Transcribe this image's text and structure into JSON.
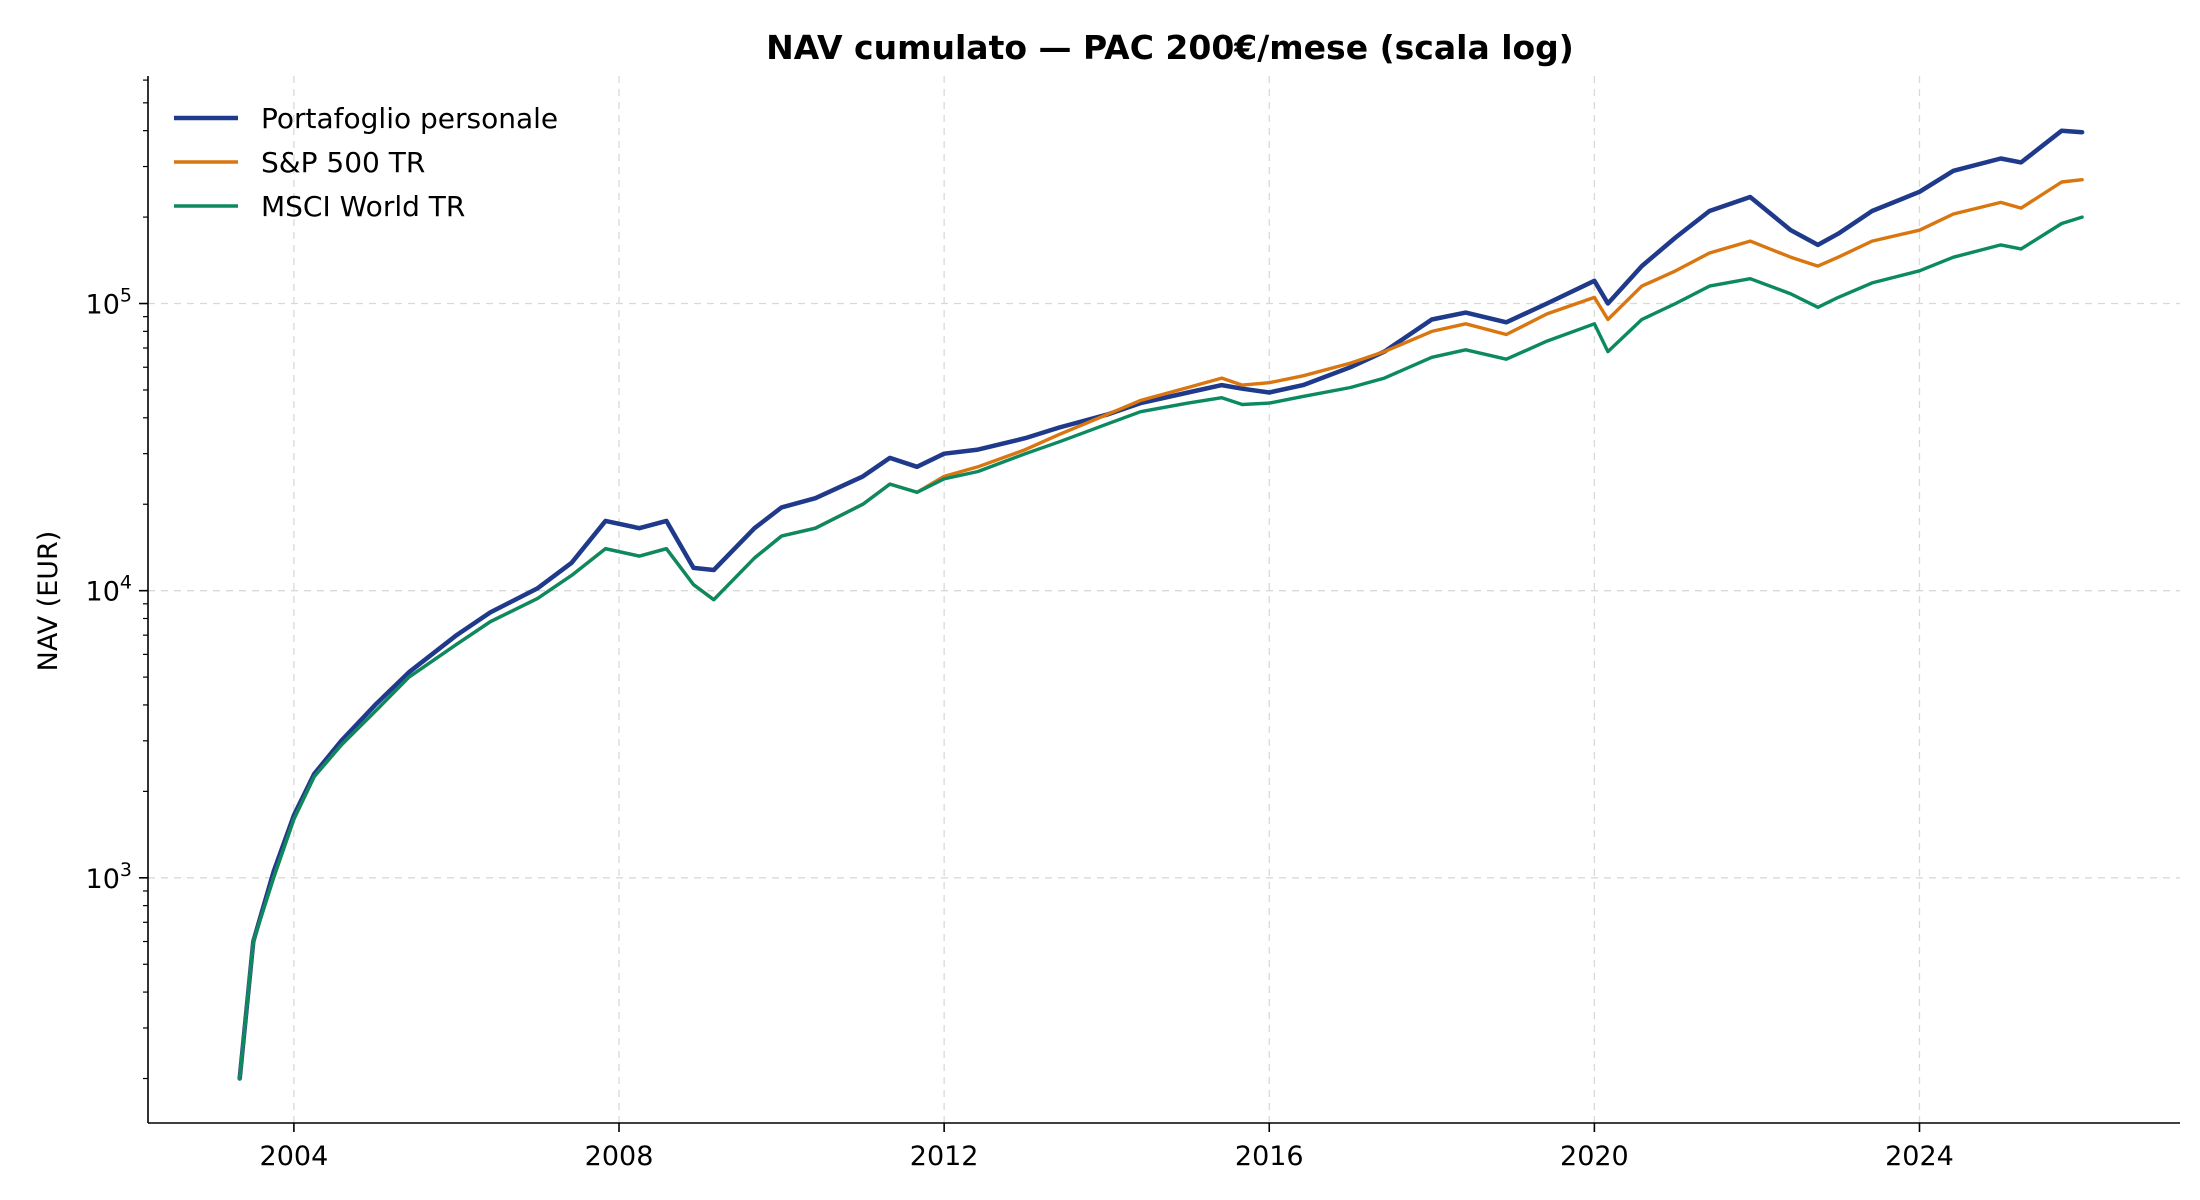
{
  "chart_data": {
    "type": "line",
    "title": "NAV cumulato — PAC 200€/mese (scala log)",
    "xlabel": "",
    "ylabel": "NAV (EUR)",
    "y_scale": "log",
    "x_ticks": [
      "2004",
      "2008",
      "2012",
      "2016",
      "2020",
      "2024"
    ],
    "y_ticks": [
      {
        "value": 1000,
        "base": "10",
        "exp": "3"
      },
      {
        "value": 10000,
        "base": "10",
        "exp": "4"
      },
      {
        "value": 100000,
        "base": "10",
        "exp": "5"
      }
    ],
    "xlim": [
      "2002-03-15",
      "2027-03-15"
    ],
    "ylim": [
      140,
      620000
    ],
    "grid": true,
    "legend_position": "top-left",
    "series": [
      {
        "name": "Portafoglio personale",
        "color": "#1f3a8a",
        "points": [
          [
            "2003-05",
            200
          ],
          [
            "2003-07",
            600
          ],
          [
            "2003-10",
            1050
          ],
          [
            "2004-01",
            1650
          ],
          [
            "2004-04",
            2300
          ],
          [
            "2004-08",
            3000
          ],
          [
            "2005-01",
            4000
          ],
          [
            "2005-06",
            5200
          ],
          [
            "2006-01",
            7000
          ],
          [
            "2006-06",
            8400
          ],
          [
            "2007-01",
            10200
          ],
          [
            "2007-06",
            12500
          ],
          [
            "2007-11",
            17500
          ],
          [
            "2008-04",
            16500
          ],
          [
            "2008-08",
            17500
          ],
          [
            "2008-12",
            12000
          ],
          [
            "2009-03",
            11800
          ],
          [
            "2009-09",
            16500
          ],
          [
            "2010-01",
            19500
          ],
          [
            "2010-06",
            21000
          ],
          [
            "2011-01",
            25000
          ],
          [
            "2011-05",
            29000
          ],
          [
            "2011-09",
            27000
          ],
          [
            "2012-01",
            30000
          ],
          [
            "2012-06",
            31000
          ],
          [
            "2013-01",
            34000
          ],
          [
            "2013-06",
            37000
          ],
          [
            "2014-01",
            41000
          ],
          [
            "2014-06",
            45000
          ],
          [
            "2015-01",
            49000
          ],
          [
            "2015-06",
            52000
          ],
          [
            "2015-09",
            50500
          ],
          [
            "2016-01",
            49000
          ],
          [
            "2016-06",
            52000
          ],
          [
            "2017-01",
            60000
          ],
          [
            "2017-06",
            68000
          ],
          [
            "2018-01",
            88000
          ],
          [
            "2018-06",
            93000
          ],
          [
            "2018-12",
            86000
          ],
          [
            "2019-06",
            100000
          ],
          [
            "2020-01",
            120000
          ],
          [
            "2020-03",
            100000
          ],
          [
            "2020-08",
            135000
          ],
          [
            "2021-01",
            170000
          ],
          [
            "2021-06",
            210000
          ],
          [
            "2021-12",
            235000
          ],
          [
            "2022-06",
            180000
          ],
          [
            "2022-10",
            160000
          ],
          [
            "2023-01",
            175000
          ],
          [
            "2023-06",
            210000
          ],
          [
            "2024-01",
            245000
          ],
          [
            "2024-06",
            290000
          ],
          [
            "2025-01",
            320000
          ],
          [
            "2025-04",
            310000
          ],
          [
            "2025-10",
            400000
          ],
          [
            "2026-01",
            395000
          ]
        ]
      },
      {
        "name": "S&P 500 TR",
        "color": "#d9760f",
        "points": [
          [
            "2003-05",
            200
          ],
          [
            "2003-07",
            600
          ],
          [
            "2003-10",
            1000
          ],
          [
            "2004-01",
            1600
          ],
          [
            "2004-04",
            2250
          ],
          [
            "2004-08",
            2900
          ],
          [
            "2005-01",
            3800
          ],
          [
            "2005-06",
            5000
          ],
          [
            "2006-01",
            6500
          ],
          [
            "2006-06",
            7800
          ],
          [
            "2007-01",
            9400
          ],
          [
            "2007-06",
            11300
          ],
          [
            "2007-11",
            14000
          ],
          [
            "2008-04",
            13200
          ],
          [
            "2008-08",
            14000
          ],
          [
            "2008-12",
            10500
          ],
          [
            "2009-03",
            9300
          ],
          [
            "2009-09",
            13000
          ],
          [
            "2010-01",
            15500
          ],
          [
            "2010-06",
            16500
          ],
          [
            "2011-01",
            20000
          ],
          [
            "2011-05",
            23500
          ],
          [
            "2011-09",
            22000
          ],
          [
            "2012-01",
            25000
          ],
          [
            "2012-06",
            27000
          ],
          [
            "2013-01",
            31000
          ],
          [
            "2013-06",
            35000
          ],
          [
            "2014-01",
            41000
          ],
          [
            "2014-06",
            46000
          ],
          [
            "2015-01",
            51000
          ],
          [
            "2015-06",
            55000
          ],
          [
            "2015-09",
            52000
          ],
          [
            "2016-01",
            53000
          ],
          [
            "2016-06",
            56000
          ],
          [
            "2017-01",
            62000
          ],
          [
            "2017-06",
            68000
          ],
          [
            "2018-01",
            80000
          ],
          [
            "2018-06",
            85000
          ],
          [
            "2018-12",
            78000
          ],
          [
            "2019-06",
            92000
          ],
          [
            "2020-01",
            105000
          ],
          [
            "2020-03",
            88000
          ],
          [
            "2020-08",
            115000
          ],
          [
            "2021-01",
            130000
          ],
          [
            "2021-06",
            150000
          ],
          [
            "2021-12",
            165000
          ],
          [
            "2022-06",
            145000
          ],
          [
            "2022-10",
            135000
          ],
          [
            "2023-01",
            145000
          ],
          [
            "2023-06",
            165000
          ],
          [
            "2024-01",
            180000
          ],
          [
            "2024-06",
            205000
          ],
          [
            "2025-01",
            225000
          ],
          [
            "2025-04",
            215000
          ],
          [
            "2025-10",
            265000
          ],
          [
            "2026-01",
            270000
          ]
        ]
      },
      {
        "name": "MSCI World TR",
        "color": "#0b8a62",
        "points": [
          [
            "2003-05",
            200
          ],
          [
            "2003-07",
            600
          ],
          [
            "2003-10",
            1000
          ],
          [
            "2004-01",
            1600
          ],
          [
            "2004-04",
            2250
          ],
          [
            "2004-08",
            2900
          ],
          [
            "2005-01",
            3800
          ],
          [
            "2005-06",
            5000
          ],
          [
            "2006-01",
            6500
          ],
          [
            "2006-06",
            7800
          ],
          [
            "2007-01",
            9400
          ],
          [
            "2007-06",
            11300
          ],
          [
            "2007-11",
            14000
          ],
          [
            "2008-04",
            13200
          ],
          [
            "2008-08",
            14000
          ],
          [
            "2008-12",
            10500
          ],
          [
            "2009-03",
            9300
          ],
          [
            "2009-09",
            13000
          ],
          [
            "2010-01",
            15500
          ],
          [
            "2010-06",
            16500
          ],
          [
            "2011-01",
            20000
          ],
          [
            "2011-05",
            23500
          ],
          [
            "2011-09",
            22000
          ],
          [
            "2012-01",
            24500
          ],
          [
            "2012-06",
            26000
          ],
          [
            "2013-01",
            30000
          ],
          [
            "2013-06",
            33000
          ],
          [
            "2014-01",
            38000
          ],
          [
            "2014-06",
            42000
          ],
          [
            "2015-01",
            45000
          ],
          [
            "2015-06",
            47000
          ],
          [
            "2015-09",
            44500
          ],
          [
            "2016-01",
            45000
          ],
          [
            "2016-06",
            47500
          ],
          [
            "2017-01",
            51000
          ],
          [
            "2017-06",
            55000
          ],
          [
            "2018-01",
            65000
          ],
          [
            "2018-06",
            69000
          ],
          [
            "2018-12",
            64000
          ],
          [
            "2019-06",
            74000
          ],
          [
            "2020-01",
            85000
          ],
          [
            "2020-03",
            68000
          ],
          [
            "2020-08",
            88000
          ],
          [
            "2021-01",
            100000
          ],
          [
            "2021-06",
            115000
          ],
          [
            "2021-12",
            122000
          ],
          [
            "2022-06",
            108000
          ],
          [
            "2022-10",
            97000
          ],
          [
            "2023-01",
            105000
          ],
          [
            "2023-06",
            118000
          ],
          [
            "2024-01",
            130000
          ],
          [
            "2024-06",
            145000
          ],
          [
            "2025-01",
            160000
          ],
          [
            "2025-04",
            155000
          ],
          [
            "2025-10",
            190000
          ],
          [
            "2026-01",
            200000
          ]
        ]
      }
    ]
  }
}
